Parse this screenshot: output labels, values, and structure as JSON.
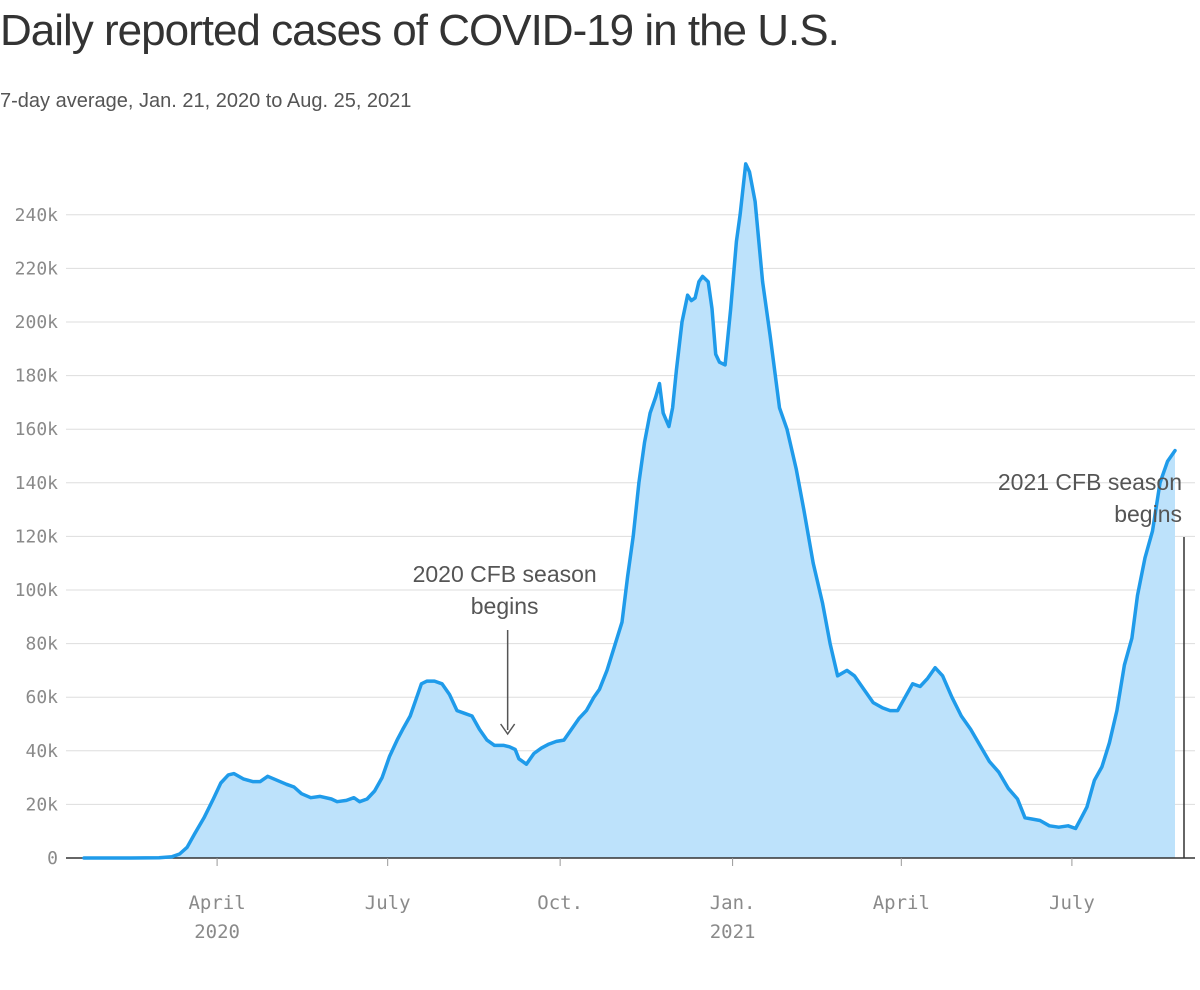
{
  "title": "Daily reported cases of COVID-19 in the U.S.",
  "subtitle": "7-day average, Jan. 21, 2020 to Aug. 25, 2021",
  "colors": {
    "line": "#1f9bea",
    "area": "#bde2fb",
    "grid": "#dddddd",
    "text": "#333333",
    "axis_text": "#8a8a8a",
    "annotation": "#555555"
  },
  "chart_data": {
    "type": "area",
    "title": "Daily reported cases of COVID-19 in the U.S.",
    "subtitle": "7-day average, Jan. 21, 2020 to Aug. 25, 2021",
    "xlabel": "",
    "ylabel": "",
    "x_range": [
      "2020-01-21",
      "2021-08-25"
    ],
    "ylim": [
      0,
      260000
    ],
    "grid": true,
    "y_ticks": [
      {
        "value": 0,
        "label": "0"
      },
      {
        "value": 20000,
        "label": "20k"
      },
      {
        "value": 40000,
        "label": "40k"
      },
      {
        "value": 60000,
        "label": "60k"
      },
      {
        "value": 80000,
        "label": "80k"
      },
      {
        "value": 100000,
        "label": "100k"
      },
      {
        "value": 120000,
        "label": "120k"
      },
      {
        "value": 140000,
        "label": "140k"
      },
      {
        "value": 160000,
        "label": "160k"
      },
      {
        "value": 180000,
        "label": "180k"
      },
      {
        "value": 200000,
        "label": "200k"
      },
      {
        "value": 220000,
        "label": "220k"
      },
      {
        "value": 240000,
        "label": "240k"
      }
    ],
    "x_ticks": [
      {
        "date": "2020-04-01",
        "label": "April",
        "sublabel": "2020"
      },
      {
        "date": "2020-07-01",
        "label": "July",
        "sublabel": ""
      },
      {
        "date": "2020-10-01",
        "label": "Oct.",
        "sublabel": ""
      },
      {
        "date": "2021-01-01",
        "label": "Jan.",
        "sublabel": "2021"
      },
      {
        "date": "2021-04-01",
        "label": "April",
        "sublabel": ""
      },
      {
        "date": "2021-07-01",
        "label": "July",
        "sublabel": ""
      }
    ],
    "series": [
      {
        "values": [
          [
            "2020-01-21",
            0
          ],
          [
            "2020-02-15",
            0
          ],
          [
            "2020-03-01",
            100
          ],
          [
            "2020-03-08",
            500
          ],
          [
            "2020-03-12",
            1500
          ],
          [
            "2020-03-16",
            4000
          ],
          [
            "2020-03-20",
            9000
          ],
          [
            "2020-03-25",
            15000
          ],
          [
            "2020-03-30",
            22000
          ],
          [
            "2020-04-03",
            28000
          ],
          [
            "2020-04-07",
            31000
          ],
          [
            "2020-04-10",
            31500
          ],
          [
            "2020-04-15",
            29500
          ],
          [
            "2020-04-20",
            28500
          ],
          [
            "2020-04-24",
            28500
          ],
          [
            "2020-04-28",
            30500
          ],
          [
            "2020-05-03",
            29000
          ],
          [
            "2020-05-08",
            27500
          ],
          [
            "2020-05-12",
            26500
          ],
          [
            "2020-05-16",
            24000
          ],
          [
            "2020-05-21",
            22500
          ],
          [
            "2020-05-26",
            23000
          ],
          [
            "2020-06-01",
            22000
          ],
          [
            "2020-06-04",
            21000
          ],
          [
            "2020-06-09",
            21500
          ],
          [
            "2020-06-13",
            22500
          ],
          [
            "2020-06-16",
            21000
          ],
          [
            "2020-06-20",
            22000
          ],
          [
            "2020-06-24",
            25000
          ],
          [
            "2020-06-28",
            30000
          ],
          [
            "2020-07-02",
            38000
          ],
          [
            "2020-07-06",
            44000
          ],
          [
            "2020-07-09",
            48000
          ],
          [
            "2020-07-13",
            53000
          ],
          [
            "2020-07-16",
            59000
          ],
          [
            "2020-07-19",
            65000
          ],
          [
            "2020-07-22",
            66000
          ],
          [
            "2020-07-26",
            66000
          ],
          [
            "2020-07-30",
            65000
          ],
          [
            "2020-08-03",
            61000
          ],
          [
            "2020-08-07",
            55000
          ],
          [
            "2020-08-11",
            54000
          ],
          [
            "2020-08-15",
            53000
          ],
          [
            "2020-08-19",
            48000
          ],
          [
            "2020-08-23",
            44000
          ],
          [
            "2020-08-27",
            42000
          ],
          [
            "2020-09-01",
            42000
          ],
          [
            "2020-09-04",
            41500
          ],
          [
            "2020-09-07",
            40500
          ],
          [
            "2020-09-09",
            37000
          ],
          [
            "2020-09-13",
            35000
          ],
          [
            "2020-09-17",
            39000
          ],
          [
            "2020-09-21",
            41000
          ],
          [
            "2020-09-25",
            42500
          ],
          [
            "2020-09-29",
            43500
          ],
          [
            "2020-10-03",
            44000
          ],
          [
            "2020-10-07",
            48000
          ],
          [
            "2020-10-11",
            52000
          ],
          [
            "2020-10-15",
            55000
          ],
          [
            "2020-10-19",
            60000
          ],
          [
            "2020-10-22",
            63000
          ],
          [
            "2020-10-26",
            70000
          ],
          [
            "2020-10-30",
            79000
          ],
          [
            "2020-11-03",
            88000
          ],
          [
            "2020-11-06",
            105000
          ],
          [
            "2020-11-09",
            120000
          ],
          [
            "2020-11-12",
            140000
          ],
          [
            "2020-11-15",
            155000
          ],
          [
            "2020-11-18",
            166000
          ],
          [
            "2020-11-21",
            172000
          ],
          [
            "2020-11-23",
            177000
          ],
          [
            "2020-11-25",
            166000
          ],
          [
            "2020-11-28",
            161000
          ],
          [
            "2020-11-30",
            168000
          ],
          [
            "2020-12-02",
            182000
          ],
          [
            "2020-12-05",
            200000
          ],
          [
            "2020-12-08",
            210000
          ],
          [
            "2020-12-10",
            208000
          ],
          [
            "2020-12-12",
            209000
          ],
          [
            "2020-12-14",
            215000
          ],
          [
            "2020-12-16",
            217000
          ],
          [
            "2020-12-19",
            215000
          ],
          [
            "2020-12-21",
            205000
          ],
          [
            "2020-12-23",
            188000
          ],
          [
            "2020-12-25",
            185000
          ],
          [
            "2020-12-28",
            184000
          ],
          [
            "2020-12-31",
            205000
          ],
          [
            "2021-01-03",
            230000
          ],
          [
            "2021-01-05",
            240000
          ],
          [
            "2021-01-08",
            259000
          ],
          [
            "2021-01-10",
            256000
          ],
          [
            "2021-01-13",
            245000
          ],
          [
            "2021-01-17",
            215000
          ],
          [
            "2021-01-21",
            195000
          ],
          [
            "2021-01-26",
            168000
          ],
          [
            "2021-01-30",
            160000
          ],
          [
            "2021-02-04",
            145000
          ],
          [
            "2021-02-08",
            130000
          ],
          [
            "2021-02-13",
            110000
          ],
          [
            "2021-02-18",
            95000
          ],
          [
            "2021-02-22",
            80000
          ],
          [
            "2021-02-26",
            68000
          ],
          [
            "2021-03-03",
            70000
          ],
          [
            "2021-03-07",
            68000
          ],
          [
            "2021-03-12",
            63000
          ],
          [
            "2021-03-17",
            58000
          ],
          [
            "2021-03-22",
            56000
          ],
          [
            "2021-03-26",
            55000
          ],
          [
            "2021-03-30",
            55000
          ],
          [
            "2021-04-03",
            60000
          ],
          [
            "2021-04-07",
            65000
          ],
          [
            "2021-04-11",
            64000
          ],
          [
            "2021-04-15",
            67000
          ],
          [
            "2021-04-19",
            71000
          ],
          [
            "2021-04-23",
            68000
          ],
          [
            "2021-04-28",
            60000
          ],
          [
            "2021-05-03",
            53000
          ],
          [
            "2021-05-08",
            48000
          ],
          [
            "2021-05-13",
            42000
          ],
          [
            "2021-05-18",
            36000
          ],
          [
            "2021-05-23",
            32000
          ],
          [
            "2021-05-28",
            26000
          ],
          [
            "2021-06-02",
            22000
          ],
          [
            "2021-06-06",
            15000
          ],
          [
            "2021-06-10",
            14500
          ],
          [
            "2021-06-14",
            14000
          ],
          [
            "2021-06-19",
            12000
          ],
          [
            "2021-06-24",
            11500
          ],
          [
            "2021-06-29",
            12000
          ],
          [
            "2021-07-03",
            11000
          ],
          [
            "2021-07-06",
            15000
          ],
          [
            "2021-07-09",
            19000
          ],
          [
            "2021-07-13",
            29000
          ],
          [
            "2021-07-17",
            34000
          ],
          [
            "2021-07-21",
            43000
          ],
          [
            "2021-07-25",
            55000
          ],
          [
            "2021-07-29",
            72000
          ],
          [
            "2021-08-02",
            82000
          ],
          [
            "2021-08-05",
            98000
          ],
          [
            "2021-08-09",
            112000
          ],
          [
            "2021-08-13",
            122000
          ],
          [
            "2021-08-17",
            140000
          ],
          [
            "2021-08-21",
            148000
          ],
          [
            "2021-08-25",
            152000
          ]
        ]
      }
    ],
    "annotations": [
      {
        "lines": [
          "2020 CFB season",
          "begins"
        ],
        "date": "2020-09-03",
        "value": 42000,
        "style": "arrow"
      },
      {
        "lines": [
          "2021 CFB season",
          "begins"
        ],
        "date": "2021-08-28",
        "value": 0,
        "style": "rule"
      }
    ]
  }
}
